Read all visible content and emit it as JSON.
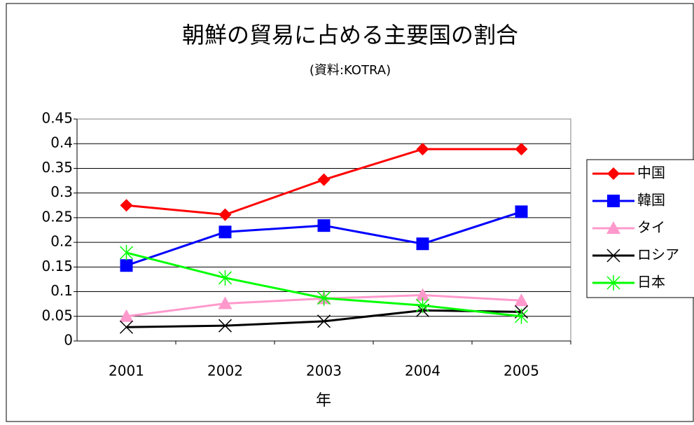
{
  "chart_data": {
    "type": "line",
    "title": "朝鮮の貿易に占める主要国の割合",
    "subtitle": "(資料:KOTRA)",
    "x_label": "年",
    "categories": [
      "2001",
      "2002",
      "2003",
      "2004",
      "2005"
    ],
    "series": [
      {
        "name": "中国",
        "color": "#ff0000",
        "marker": "diamond",
        "values": [
          0.275,
          0.256,
          0.327,
          0.389,
          0.389
        ]
      },
      {
        "name": "韓国",
        "color": "#0000ff",
        "marker": "square",
        "values": [
          0.153,
          0.221,
          0.234,
          0.197,
          0.262
        ]
      },
      {
        "name": "タイ",
        "color": "#ff99cc",
        "marker": "triangle",
        "values": [
          0.05,
          0.076,
          0.086,
          0.093,
          0.082
        ]
      },
      {
        "name": "ロシア",
        "color": "#000000",
        "marker": "x",
        "values": [
          0.028,
          0.031,
          0.04,
          0.062,
          0.059
        ]
      },
      {
        "name": "日本",
        "color": "#00ff00",
        "marker": "asterisk",
        "values": [
          0.179,
          0.128,
          0.087,
          0.072,
          0.05
        ]
      }
    ],
    "ylim": [
      0,
      0.45
    ],
    "yticks": [
      0,
      0.05,
      0.1,
      0.15,
      0.2,
      0.25,
      0.3,
      0.35,
      0.4,
      0.45
    ],
    "grid": true,
    "legend": "right"
  }
}
